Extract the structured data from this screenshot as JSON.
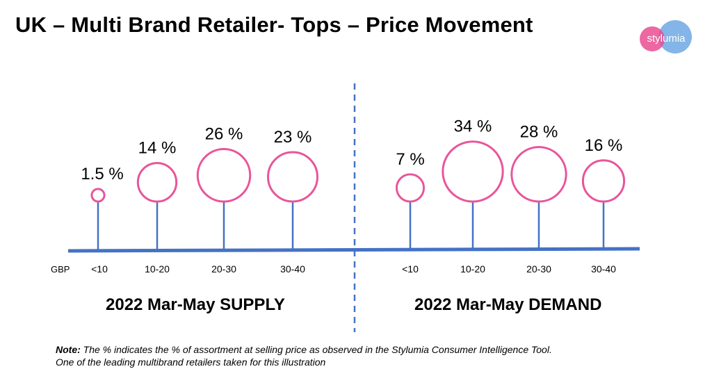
{
  "title": "UK – Multi Brand Retailer- Tops – Price Movement",
  "logo_text": "stylumia",
  "colors": {
    "bubble": "#e8559a",
    "stem": "#4472c4",
    "logo_pink": "#ea4c93",
    "logo_blue": "#6fa8e4"
  },
  "chart_data": {
    "type": "bubble",
    "currency_label": "GBP",
    "panels": [
      {
        "name": "2022 Mar-May SUPPLY",
        "categories": [
          "<10",
          "10-20",
          "20-30",
          "30-40"
        ],
        "values": [
          1.5,
          14,
          26,
          23
        ],
        "labels": [
          "1.5 %",
          "14 %",
          "26 %",
          "23 %"
        ]
      },
      {
        "name": "2022 Mar-May DEMAND",
        "categories": [
          "<10",
          "10-20",
          "20-30",
          "30-40"
        ],
        "values": [
          7,
          34,
          28,
          16
        ],
        "labels": [
          "7 %",
          "34 %",
          "28 %",
          "16 %"
        ]
      }
    ],
    "unit": "% of assortment"
  },
  "note": {
    "bold": "Note:",
    "line1": " The % indicates the % of assortment at selling price as observed in the Stylumia Consumer Intelligence Tool.",
    "line2": "One of the leading multibrand retailers taken for this illustration"
  }
}
